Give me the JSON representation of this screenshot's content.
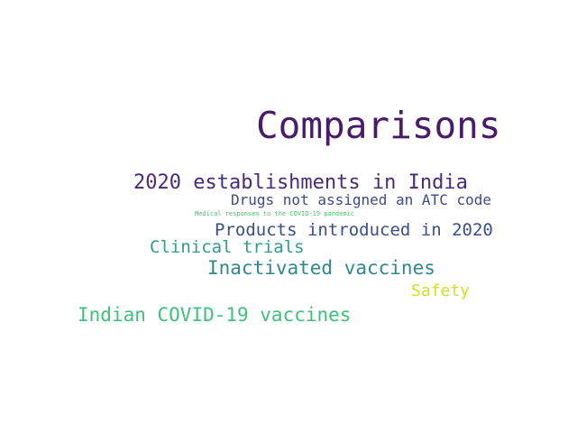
{
  "words": [
    {
      "text": "Comparisons",
      "color": "#4a1a6b"
    },
    {
      "text": "2020 establishments in India",
      "color": "#4a2a7a"
    },
    {
      "text": "Drugs not assigned an ATC code",
      "color": "#3f4a8a"
    },
    {
      "text": "Medical responses to the COVID-19 pandemic",
      "color": "#4cc36a"
    },
    {
      "text": "Products introduced in 2020",
      "color": "#3a4f8a"
    },
    {
      "text": "Clinical trials",
      "color": "#2f9e8f"
    },
    {
      "text": "Inactivated vaccines",
      "color": "#2f8a8c"
    },
    {
      "text": "Safety",
      "color": "#cfe02a"
    },
    {
      "text": "Indian COVID-19 vaccines",
      "color": "#3ec27a"
    }
  ]
}
